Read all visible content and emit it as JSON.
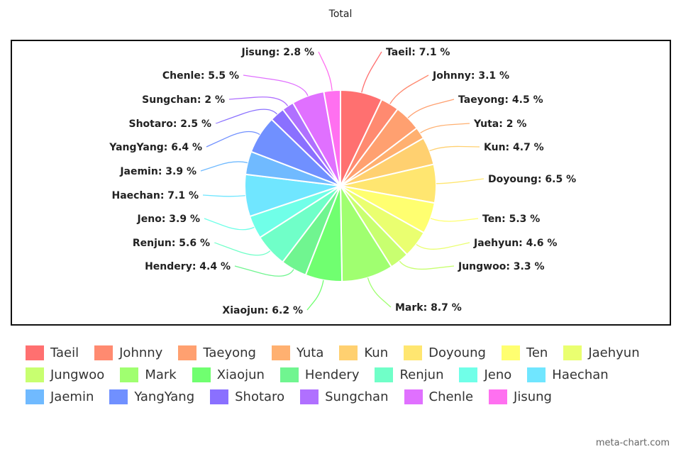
{
  "chart_data": {
    "type": "pie",
    "title": "Total",
    "categories": [
      "Taeil",
      "Johnny",
      "Taeyong",
      "Yuta",
      "Kun",
      "Doyoung",
      "Ten",
      "Jaehyun",
      "Jungwoo",
      "Mark",
      "Xiaojun",
      "Hendery",
      "Renjun",
      "Jeno",
      "Haechan",
      "Jaemin",
      "YangYang",
      "Shotaro",
      "Sungchan",
      "Chenle",
      "Jisung"
    ],
    "values": [
      7.1,
      3.1,
      4.5,
      2,
      4.7,
      6.5,
      5.3,
      4.6,
      3.3,
      8.7,
      6.2,
      4.4,
      5.6,
      3.9,
      7.1,
      3.9,
      6.4,
      2.5,
      2,
      5.5,
      2.8
    ],
    "data_labels": [
      "Taeil: 7.1 %",
      "Johnny: 3.1 %",
      "Taeyong: 4.5 %",
      "Yuta: 2 %",
      "Kun: 4.7 %",
      "Doyoung: 6.5 %",
      "Ten: 5.3 %",
      "Jaehyun: 4.6 %",
      "Jungwoo: 3.3 %",
      "Mark: 8.7 %",
      "Xiaojun: 6.2 %",
      "Hendery: 4.4 %",
      "Renjun: 5.6 %",
      "Jeno: 3.9 %",
      "Haechan: 7.1 %",
      "Jaemin: 3.9 %",
      "YangYang: 6.4 %",
      "Shotaro: 2.5 %",
      "Sungchan: 2 %",
      "Chenle: 5.5 %",
      "Jisung: 2.8 %"
    ],
    "colors": [
      "#ff7070",
      "#ff8a70",
      "#ffa070",
      "#ffb070",
      "#ffd070",
      "#ffe670",
      "#ffff70",
      "#eaff70",
      "#c8ff70",
      "#a0ff70",
      "#70ff70",
      "#70f590",
      "#70ffc8",
      "#70ffe8",
      "#70e6ff",
      "#70baff",
      "#7090ff",
      "#8a70ff",
      "#b070ff",
      "#e070ff",
      "#ff70f0"
    ],
    "legend": "bottom",
    "start_angle": "top, clockwise"
  },
  "watermark": "meta-chart.com"
}
